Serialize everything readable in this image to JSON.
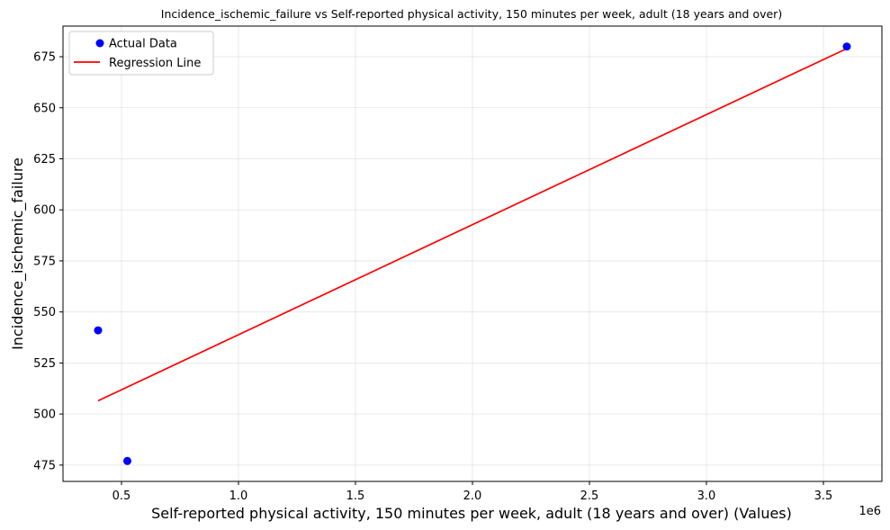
{
  "chart_data": {
    "type": "scatter",
    "title": "Incidence_ischemic_failure vs Self-reported physical activity, 150 minutes per week, adult (18 years and over)",
    "xlabel": "Self-reported physical activity, 150 minutes per week, adult (18 years and over) (Values)",
    "ylabel": "Incidence_ischemic_failure",
    "x_offset_label": "1e6",
    "xlim": [
      250000,
      3750000
    ],
    "ylim": [
      467,
      690
    ],
    "x_ticks": [
      500000,
      1000000,
      1500000,
      2000000,
      2500000,
      3000000,
      3500000
    ],
    "x_tick_labels": [
      "0.5",
      "1.0",
      "1.5",
      "2.0",
      "2.5",
      "3.0",
      "3.5"
    ],
    "y_ticks": [
      475,
      500,
      525,
      550,
      575,
      600,
      625,
      650,
      675
    ],
    "y_tick_labels": [
      "475",
      "500",
      "525",
      "550",
      "575",
      "600",
      "625",
      "650",
      "675"
    ],
    "grid": true,
    "legend_position": "top-left",
    "series": [
      {
        "name": "Actual Data",
        "kind": "scatter",
        "color": "#0000ff",
        "points": [
          {
            "x": 400000,
            "y": 541
          },
          {
            "x": 525000,
            "y": 477
          },
          {
            "x": 3600000,
            "y": 680
          }
        ]
      },
      {
        "name": "Regression Line",
        "kind": "line",
        "color": "#ff0000",
        "points": [
          {
            "x": 400000,
            "y": 506.5
          },
          {
            "x": 3600000,
            "y": 679
          }
        ]
      }
    ]
  }
}
